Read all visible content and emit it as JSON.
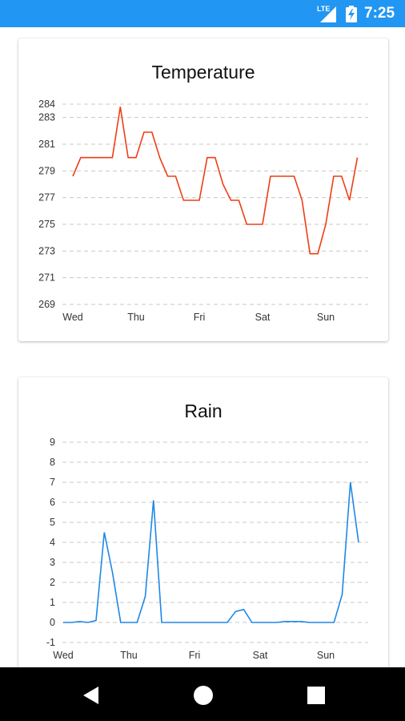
{
  "status_bar": {
    "network_label": "LTE",
    "time": "7:25",
    "signal_icon": "signal-icon",
    "battery_icon": "battery-charging-icon"
  },
  "charts": [
    {
      "id": "temp",
      "title": "Temperature",
      "color": "#ee3e16",
      "chart_data": {
        "type": "line",
        "title": "Temperature",
        "xlabel": "",
        "ylabel": "",
        "x_tick_labels": [
          "Wed",
          "Thu",
          "Fri",
          "Sat",
          "Sun"
        ],
        "y_ticks": [
          269,
          271,
          273,
          275,
          277,
          279,
          281,
          283,
          284
        ],
        "ylim": [
          269,
          284
        ],
        "grid": true,
        "x": [
          0,
          0.125,
          0.25,
          0.375,
          0.5,
          0.625,
          0.75,
          0.875,
          1,
          1.125,
          1.25,
          1.375,
          1.5,
          1.625,
          1.75,
          1.875,
          2,
          2.125,
          2.25,
          2.375,
          2.5,
          2.625,
          2.75,
          2.875,
          3,
          3.125,
          3.25,
          3.375,
          3.5,
          3.625,
          3.75,
          3.875,
          4,
          4.125,
          4.25,
          4.375,
          4.5
        ],
        "values": [
          278.6,
          280.0,
          280.0,
          280.0,
          280.0,
          280.0,
          283.8,
          280.0,
          280.0,
          281.9,
          281.9,
          280.0,
          278.6,
          278.6,
          276.8,
          276.8,
          276.8,
          280.0,
          280.0,
          278.0,
          276.8,
          276.8,
          275.0,
          275.0,
          275.0,
          278.6,
          278.6,
          278.6,
          278.6,
          276.8,
          272.8,
          272.8,
          275.0,
          278.6,
          278.6,
          276.8,
          280.0
        ]
      }
    },
    {
      "id": "rain",
      "title": "Rain",
      "color": "#1e88e5",
      "chart_data": {
        "type": "line",
        "title": "Rain",
        "xlabel": "",
        "ylabel": "",
        "x_tick_labels": [
          "Wed",
          "Thu",
          "Fri",
          "Sat",
          "Sun"
        ],
        "y_ticks": [
          -1,
          0,
          1,
          2,
          3,
          4,
          5,
          6,
          7,
          8,
          9
        ],
        "ylim": [
          -1,
          9
        ],
        "grid": true,
        "x": [
          0,
          0.125,
          0.25,
          0.375,
          0.5,
          0.625,
          0.75,
          0.875,
          1,
          1.125,
          1.25,
          1.375,
          1.5,
          1.625,
          1.75,
          1.875,
          2,
          2.125,
          2.25,
          2.375,
          2.5,
          2.625,
          2.75,
          2.875,
          3,
          3.125,
          3.25,
          3.375,
          3.5,
          3.625,
          3.75,
          3.875,
          4,
          4.125,
          4.25,
          4.375,
          4.5
        ],
        "values": [
          0,
          0,
          0.05,
          0,
          0.1,
          4.5,
          2.5,
          0,
          0,
          0,
          1.3,
          6.1,
          0,
          0,
          0,
          0,
          0,
          0,
          0,
          0,
          0,
          0.55,
          0.65,
          0,
          0,
          0,
          0,
          0.05,
          0.05,
          0.05,
          0,
          0,
          0,
          0,
          1.4,
          7.0,
          4.0
        ]
      }
    }
  ],
  "nav_bar": {
    "back_icon": "back-icon",
    "home_icon": "home-icon",
    "recents_icon": "recents-icon"
  }
}
